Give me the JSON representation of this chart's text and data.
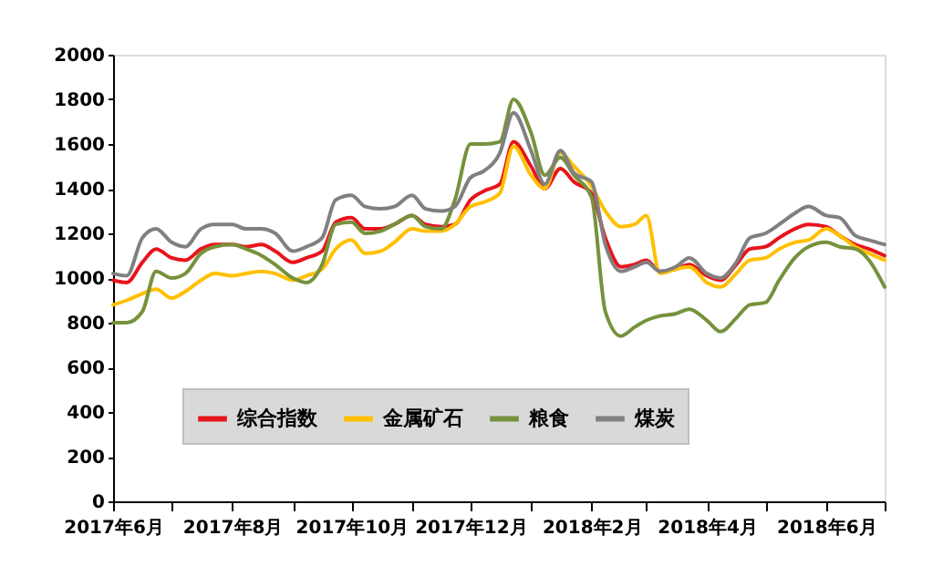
{
  "chart_data": {
    "type": "line",
    "x": [
      "2017-06-01",
      "2017-06-08",
      "2017-06-16",
      "2017-06-23",
      "2017-07-01",
      "2017-07-08",
      "2017-07-16",
      "2017-07-23",
      "2017-08-01",
      "2017-08-08",
      "2017-08-16",
      "2017-08-23",
      "2017-09-01",
      "2017-09-08",
      "2017-09-16",
      "2017-09-23",
      "2017-10-01",
      "2017-10-08",
      "2017-10-16",
      "2017-10-23",
      "2017-11-01",
      "2017-11-08",
      "2017-11-16",
      "2017-11-23",
      "2017-12-01",
      "2017-12-08",
      "2017-12-16",
      "2017-12-23",
      "2018-01-01",
      "2018-01-08",
      "2018-01-16",
      "2018-01-23",
      "2018-02-01",
      "2018-02-08",
      "2018-02-16",
      "2018-02-23",
      "2018-03-01",
      "2018-03-08",
      "2018-03-16",
      "2018-03-23",
      "2018-04-01",
      "2018-04-08",
      "2018-04-16",
      "2018-04-23",
      "2018-05-01",
      "2018-05-08",
      "2018-05-16",
      "2018-05-23",
      "2018-06-01",
      "2018-06-08",
      "2018-06-16",
      "2018-06-23",
      "2018-07-01"
    ],
    "series": [
      {
        "name": "综合指数",
        "color": "#e8141b",
        "values": [
          990,
          980,
          1070,
          1130,
          1090,
          1080,
          1130,
          1150,
          1150,
          1140,
          1150,
          1120,
          1070,
          1090,
          1120,
          1250,
          1270,
          1220,
          1220,
          1240,
          1280,
          1240,
          1230,
          1240,
          1350,
          1390,
          1420,
          1610,
          1500,
          1400,
          1490,
          1430,
          1380,
          1180,
          1050,
          1060,
          1080,
          1030,
          1040,
          1060,
          1010,
          990,
          1060,
          1130,
          1140,
          1180,
          1220,
          1240,
          1230,
          1190,
          1150,
          1130,
          1100
        ]
      },
      {
        "name": "金属矿石",
        "color": "#ffc000",
        "values": [
          880,
          900,
          930,
          950,
          910,
          940,
          990,
          1020,
          1010,
          1020,
          1030,
          1020,
          990,
          1010,
          1040,
          1130,
          1170,
          1110,
          1120,
          1160,
          1220,
          1210,
          1210,
          1240,
          1320,
          1340,
          1380,
          1590,
          1460,
          1400,
          1560,
          1500,
          1410,
          1300,
          1230,
          1240,
          1280,
          1020,
          1040,
          1050,
          980,
          960,
          1020,
          1080,
          1090,
          1130,
          1160,
          1170,
          1220,
          1190,
          1140,
          1110,
          1080
        ]
      },
      {
        "name": "粮食",
        "color": "#76923c",
        "values": [
          800,
          800,
          850,
          1030,
          1000,
          1020,
          1110,
          1140,
          1150,
          1130,
          1100,
          1060,
          1000,
          980,
          1060,
          1240,
          1250,
          1200,
          1210,
          1240,
          1280,
          1230,
          1220,
          1350,
          1600,
          1600,
          1610,
          1800,
          1650,
          1460,
          1540,
          1460,
          1360,
          850,
          740,
          780,
          810,
          830,
          840,
          860,
          810,
          760,
          820,
          880,
          890,
          990,
          1090,
          1140,
          1160,
          1140,
          1130,
          1080,
          960
        ]
      },
      {
        "name": "煤炭",
        "color": "#808080",
        "values": [
          1020,
          1010,
          1180,
          1220,
          1160,
          1140,
          1220,
          1240,
          1240,
          1220,
          1220,
          1200,
          1120,
          1140,
          1180,
          1350,
          1370,
          1320,
          1310,
          1320,
          1370,
          1310,
          1300,
          1320,
          1450,
          1480,
          1560,
          1740,
          1570,
          1420,
          1570,
          1470,
          1430,
          1150,
          1030,
          1050,
          1070,
          1030,
          1050,
          1090,
          1020,
          1000,
          1070,
          1180,
          1200,
          1240,
          1290,
          1320,
          1280,
          1270,
          1190,
          1170,
          1150
        ]
      }
    ],
    "xlim": [
      "2017-06-01",
      "2018-07-01"
    ],
    "xticks": [
      {
        "value": "2017-06",
        "label": "2017年6月"
      },
      {
        "value": "2017-07",
        "label": null
      },
      {
        "value": "2017-08",
        "label": "2017年8月"
      },
      {
        "value": "2017-09",
        "label": null
      },
      {
        "value": "2017-10",
        "label": "2017年10月"
      },
      {
        "value": "2017-11",
        "label": null
      },
      {
        "value": "2017-12",
        "label": "2017年12月"
      },
      {
        "value": "2018-01",
        "label": null
      },
      {
        "value": "2018-02",
        "label": "2018年2月"
      },
      {
        "value": "2018-03",
        "label": null
      },
      {
        "value": "2018-04",
        "label": "2018年4月"
      },
      {
        "value": "2018-05",
        "label": null
      },
      {
        "value": "2018-06",
        "label": "2018年6月"
      },
      {
        "value": "2018-07",
        "label": null
      }
    ],
    "ylim": [
      0,
      2000
    ],
    "yticks": [
      0,
      200,
      400,
      600,
      800,
      1000,
      1200,
      1400,
      1600,
      1800,
      2000
    ],
    "grid": false,
    "legend": "bottom",
    "marker": "none",
    "line_style": "solid"
  }
}
